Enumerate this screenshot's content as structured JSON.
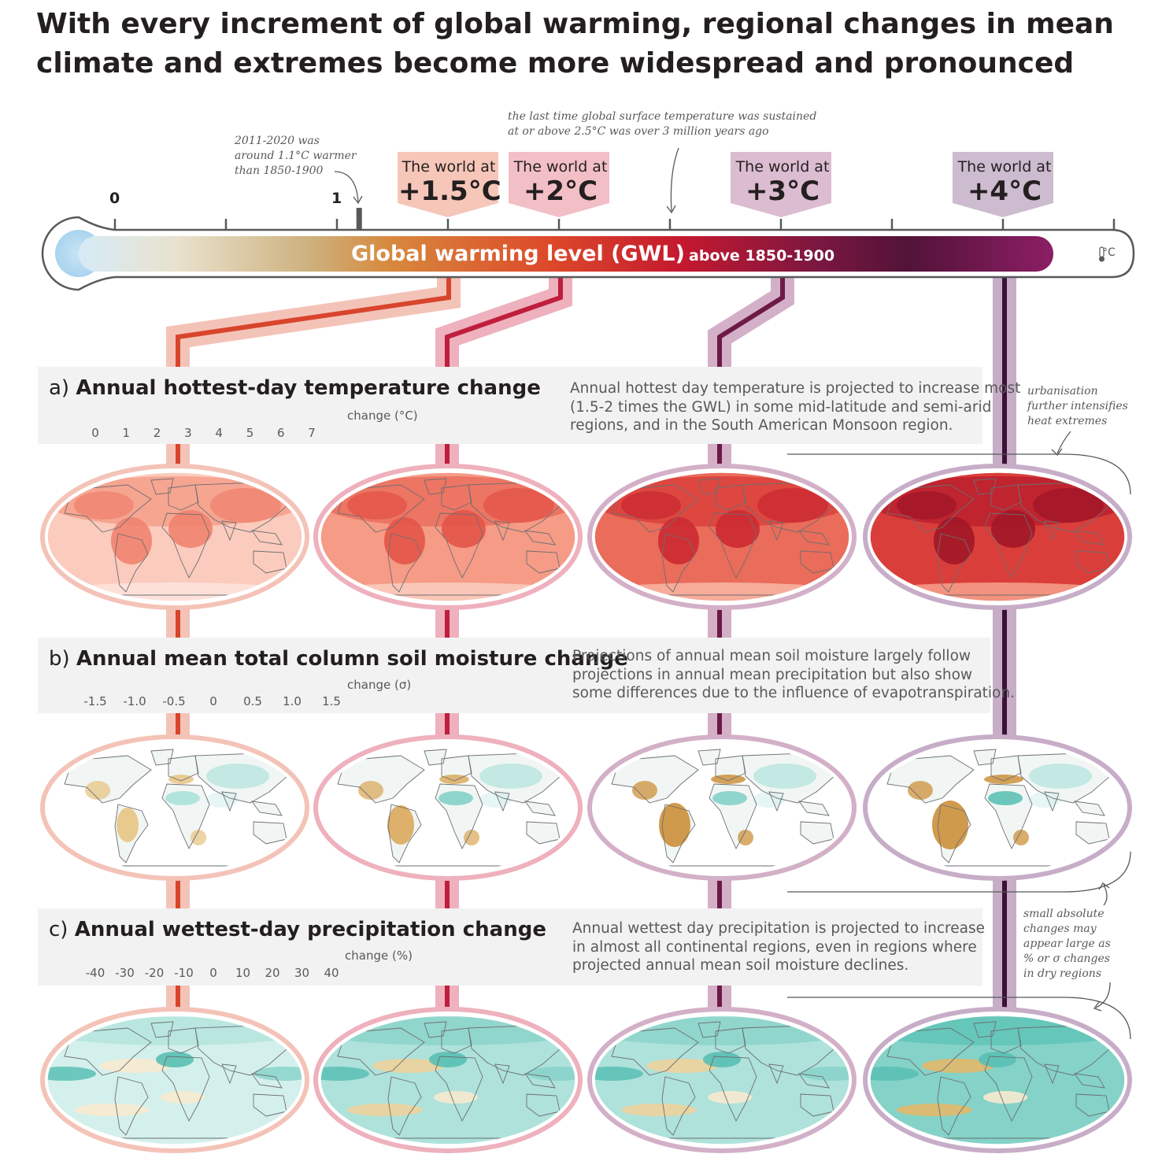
{
  "title": "With every increment of global warming, regional changes in mean climate and extremes become more widespread and pronounced",
  "notes": {
    "observed": "2011-2020 was\naround 1.1°C warmer\nthan 1850-1900",
    "last_time": "the last time global surface temperature was sustained\nat or above 2.5°C was over 3 million years ago",
    "urbanisation": "urbanisation\nfurther intensifies\nheat extremes",
    "small_changes": "small absolute\nchanges may\nappear large as\n% or σ changes\nin dry regions"
  },
  "gwl_bar": {
    "title_main": "Global warming level (GWL)",
    "title_sub": "above 1850-1900",
    "unit": "°C",
    "tick_labels": [
      "0",
      "1"
    ],
    "observed_warming": 1.1,
    "worlds": [
      {
        "prefix": "The world at",
        "level": "+1.5°C",
        "value": 1.5,
        "color": "#f6c6b9",
        "line": "#d8452c",
        "band": "#f4c3b8"
      },
      {
        "prefix": "The world at",
        "level": "+2°C",
        "value": 2.0,
        "color": "#f3bfc7",
        "line": "#bf1e3c",
        "band": "#eeb1bd"
      },
      {
        "prefix": "The world at",
        "level": "+3°C",
        "value": 3.0,
        "color": "#dcbcd0",
        "line": "#6e1a46",
        "band": "#d3b0c8"
      },
      {
        "prefix": "The world at",
        "level": "+4°C",
        "value": 4.0,
        "color": "#cdbbcf",
        "line": "#3b1236",
        "band": "#c7adc8"
      }
    ]
  },
  "panels": [
    {
      "letter": "a)",
      "name": "Annual hottest-day temperature change",
      "description": "Annual hottest day temperature is projected to increase most\n(1.5-2 times the GWL) in some mid-latitude and semi-arid\nregions, and in the South American Monsoon region.",
      "legend_label": "change (°C)",
      "ticks": [
        "0",
        "1",
        "2",
        "3",
        "4",
        "5",
        "6",
        "7"
      ],
      "colors": [
        "#fde3dc",
        "#fbcbbd",
        "#f8b3a0",
        "#f59b86",
        "#f0836f",
        "#ea6c5a",
        "#e35549",
        "#da3e3a",
        "#cc2a32",
        "#b81e2d",
        "#a11728",
        "#871124",
        "#6b0d1e"
      ]
    },
    {
      "letter": "b)",
      "name": "Annual mean total column soil moisture change",
      "description": "Projections of annual mean soil moisture largely follow\nprojections in annual mean precipitation but also show\nsome differences due to the influence of evapotranspiration.",
      "legend_label": "change (σ)",
      "ticks": [
        "-1.5",
        "-1.0",
        "-0.5",
        "0",
        "0.5",
        "1.0",
        "1.5"
      ],
      "colors": [
        "#c98a2e",
        "#d9a552",
        "#e6c27c",
        "#f0daa7",
        "#f8ecd2",
        "#eef7f6",
        "#cdeee9",
        "#a6e0d8",
        "#7ecfc5",
        "#55bdb2"
      ]
    },
    {
      "letter": "c)",
      "name": "Annual wettest-day precipitation change",
      "description": "Annual wettest day precipitation is projected to increase\nin almost all continental regions, even in regions where\nprojected annual mean soil moisture declines.",
      "legend_label": "change (%)",
      "ticks": [
        "-40",
        "-30",
        "-20",
        "-10",
        "0",
        "10",
        "20",
        "30",
        "40"
      ],
      "colors": [
        "#d3992f",
        "#e2b869",
        "#eed39c",
        "#f7eacf",
        "#f0f8f6",
        "#d4f0ec",
        "#aee2db",
        "#84d2c8",
        "#59c0b4"
      ]
    }
  ]
}
